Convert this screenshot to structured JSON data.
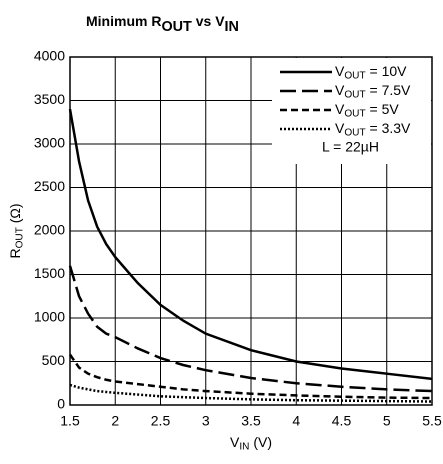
{
  "chart_data": {
    "type": "line",
    "title": [
      "Minimum R",
      "OUT",
      " vs V",
      "IN"
    ],
    "xlabel": [
      "V",
      "IN",
      " (V)"
    ],
    "ylabel": [
      "R",
      "OUT",
      " (Ω)"
    ],
    "annotation": "L = 22µH",
    "x": [
      1.5,
      1.6,
      1.7,
      1.8,
      1.9,
      2,
      2.25,
      2.5,
      2.75,
      3,
      3.5,
      4,
      4.5,
      5,
      5.5
    ],
    "series": [
      {
        "name": [
          "V",
          "OUT",
          " = 10V"
        ],
        "color": "#000000",
        "dash": "solid",
        "values": [
          3400,
          2800,
          2350,
          2050,
          1850,
          1700,
          1400,
          1150,
          970,
          820,
          630,
          500,
          420,
          360,
          300
        ]
      },
      {
        "name": [
          "V",
          "OUT",
          " = 7.5V"
        ],
        "color": "#000000",
        "dash": "long",
        "values": [
          1600,
          1250,
          1050,
          900,
          820,
          780,
          650,
          540,
          460,
          400,
          310,
          250,
          210,
          180,
          160
        ]
      },
      {
        "name": [
          "V",
          "OUT",
          " = 5V"
        ],
        "color": "#000000",
        "dash": "short",
        "values": [
          580,
          430,
          360,
          320,
          290,
          270,
          240,
          210,
          180,
          160,
          130,
          110,
          95,
          85,
          80
        ]
      },
      {
        "name": [
          "V",
          "OUT",
          " = 3.3V"
        ],
        "color": "#000000",
        "dash": "dotted",
        "values": [
          230,
          200,
          180,
          160,
          150,
          140,
          120,
          100,
          90,
          80,
          65,
          55,
          50,
          45,
          40
        ]
      }
    ],
    "xlim": [
      1.5,
      5.5
    ],
    "xticks": [
      1.5,
      2,
      2.5,
      3,
      3.5,
      4,
      4.5,
      5,
      5.5
    ],
    "ylim": [
      0,
      4000
    ],
    "yticks": [
      0,
      500,
      1000,
      1500,
      2000,
      2500,
      3000,
      3500,
      4000
    ],
    "grid": true,
    "legend": "upper right"
  }
}
